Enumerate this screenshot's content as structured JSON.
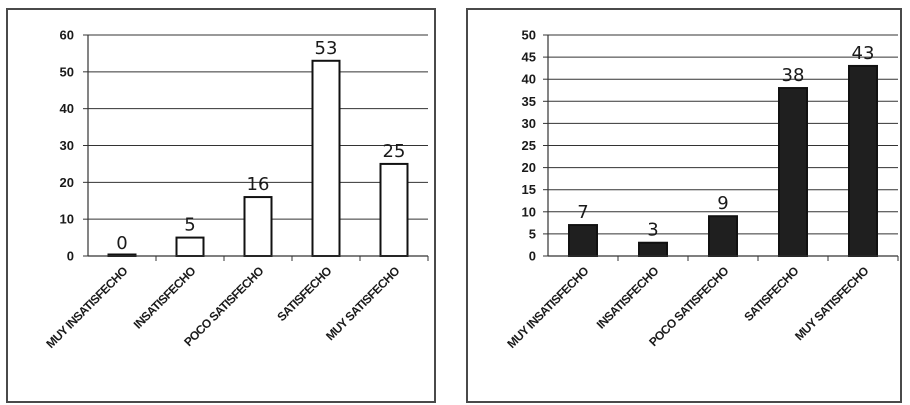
{
  "chart_data": [
    {
      "type": "bar",
      "categories": [
        "MUY INSATISFECHO",
        "INSATISFECHO",
        "POCO SATISFECHO",
        "SATISFECHO",
        "MUY SATISFECHO"
      ],
      "values": [
        0,
        5,
        16,
        53,
        25
      ],
      "data_labels": [
        "0",
        "5",
        "16",
        "53",
        "25"
      ],
      "ylim": [
        0,
        60
      ],
      "yticks": [
        0,
        10,
        20,
        30,
        40,
        50,
        60
      ],
      "grid": true,
      "bar_color": "#ffffff",
      "bar_stroke": "#111111"
    },
    {
      "type": "bar",
      "categories": [
        "MUY INSATISFECHO",
        "INSATISFECHO",
        "POCO SATISFECHO",
        "SATISFECHO",
        "MUY SATISFECHO"
      ],
      "values": [
        7,
        3,
        9,
        38,
        43
      ],
      "data_labels": [
        "7",
        "3",
        "9",
        "38",
        "43"
      ],
      "ylim": [
        0,
        50
      ],
      "yticks": [
        0,
        5,
        10,
        15,
        20,
        25,
        30,
        35,
        40,
        45,
        50
      ],
      "grid": true,
      "bar_color": "#1f1f1f",
      "bar_stroke": "#111111"
    }
  ]
}
